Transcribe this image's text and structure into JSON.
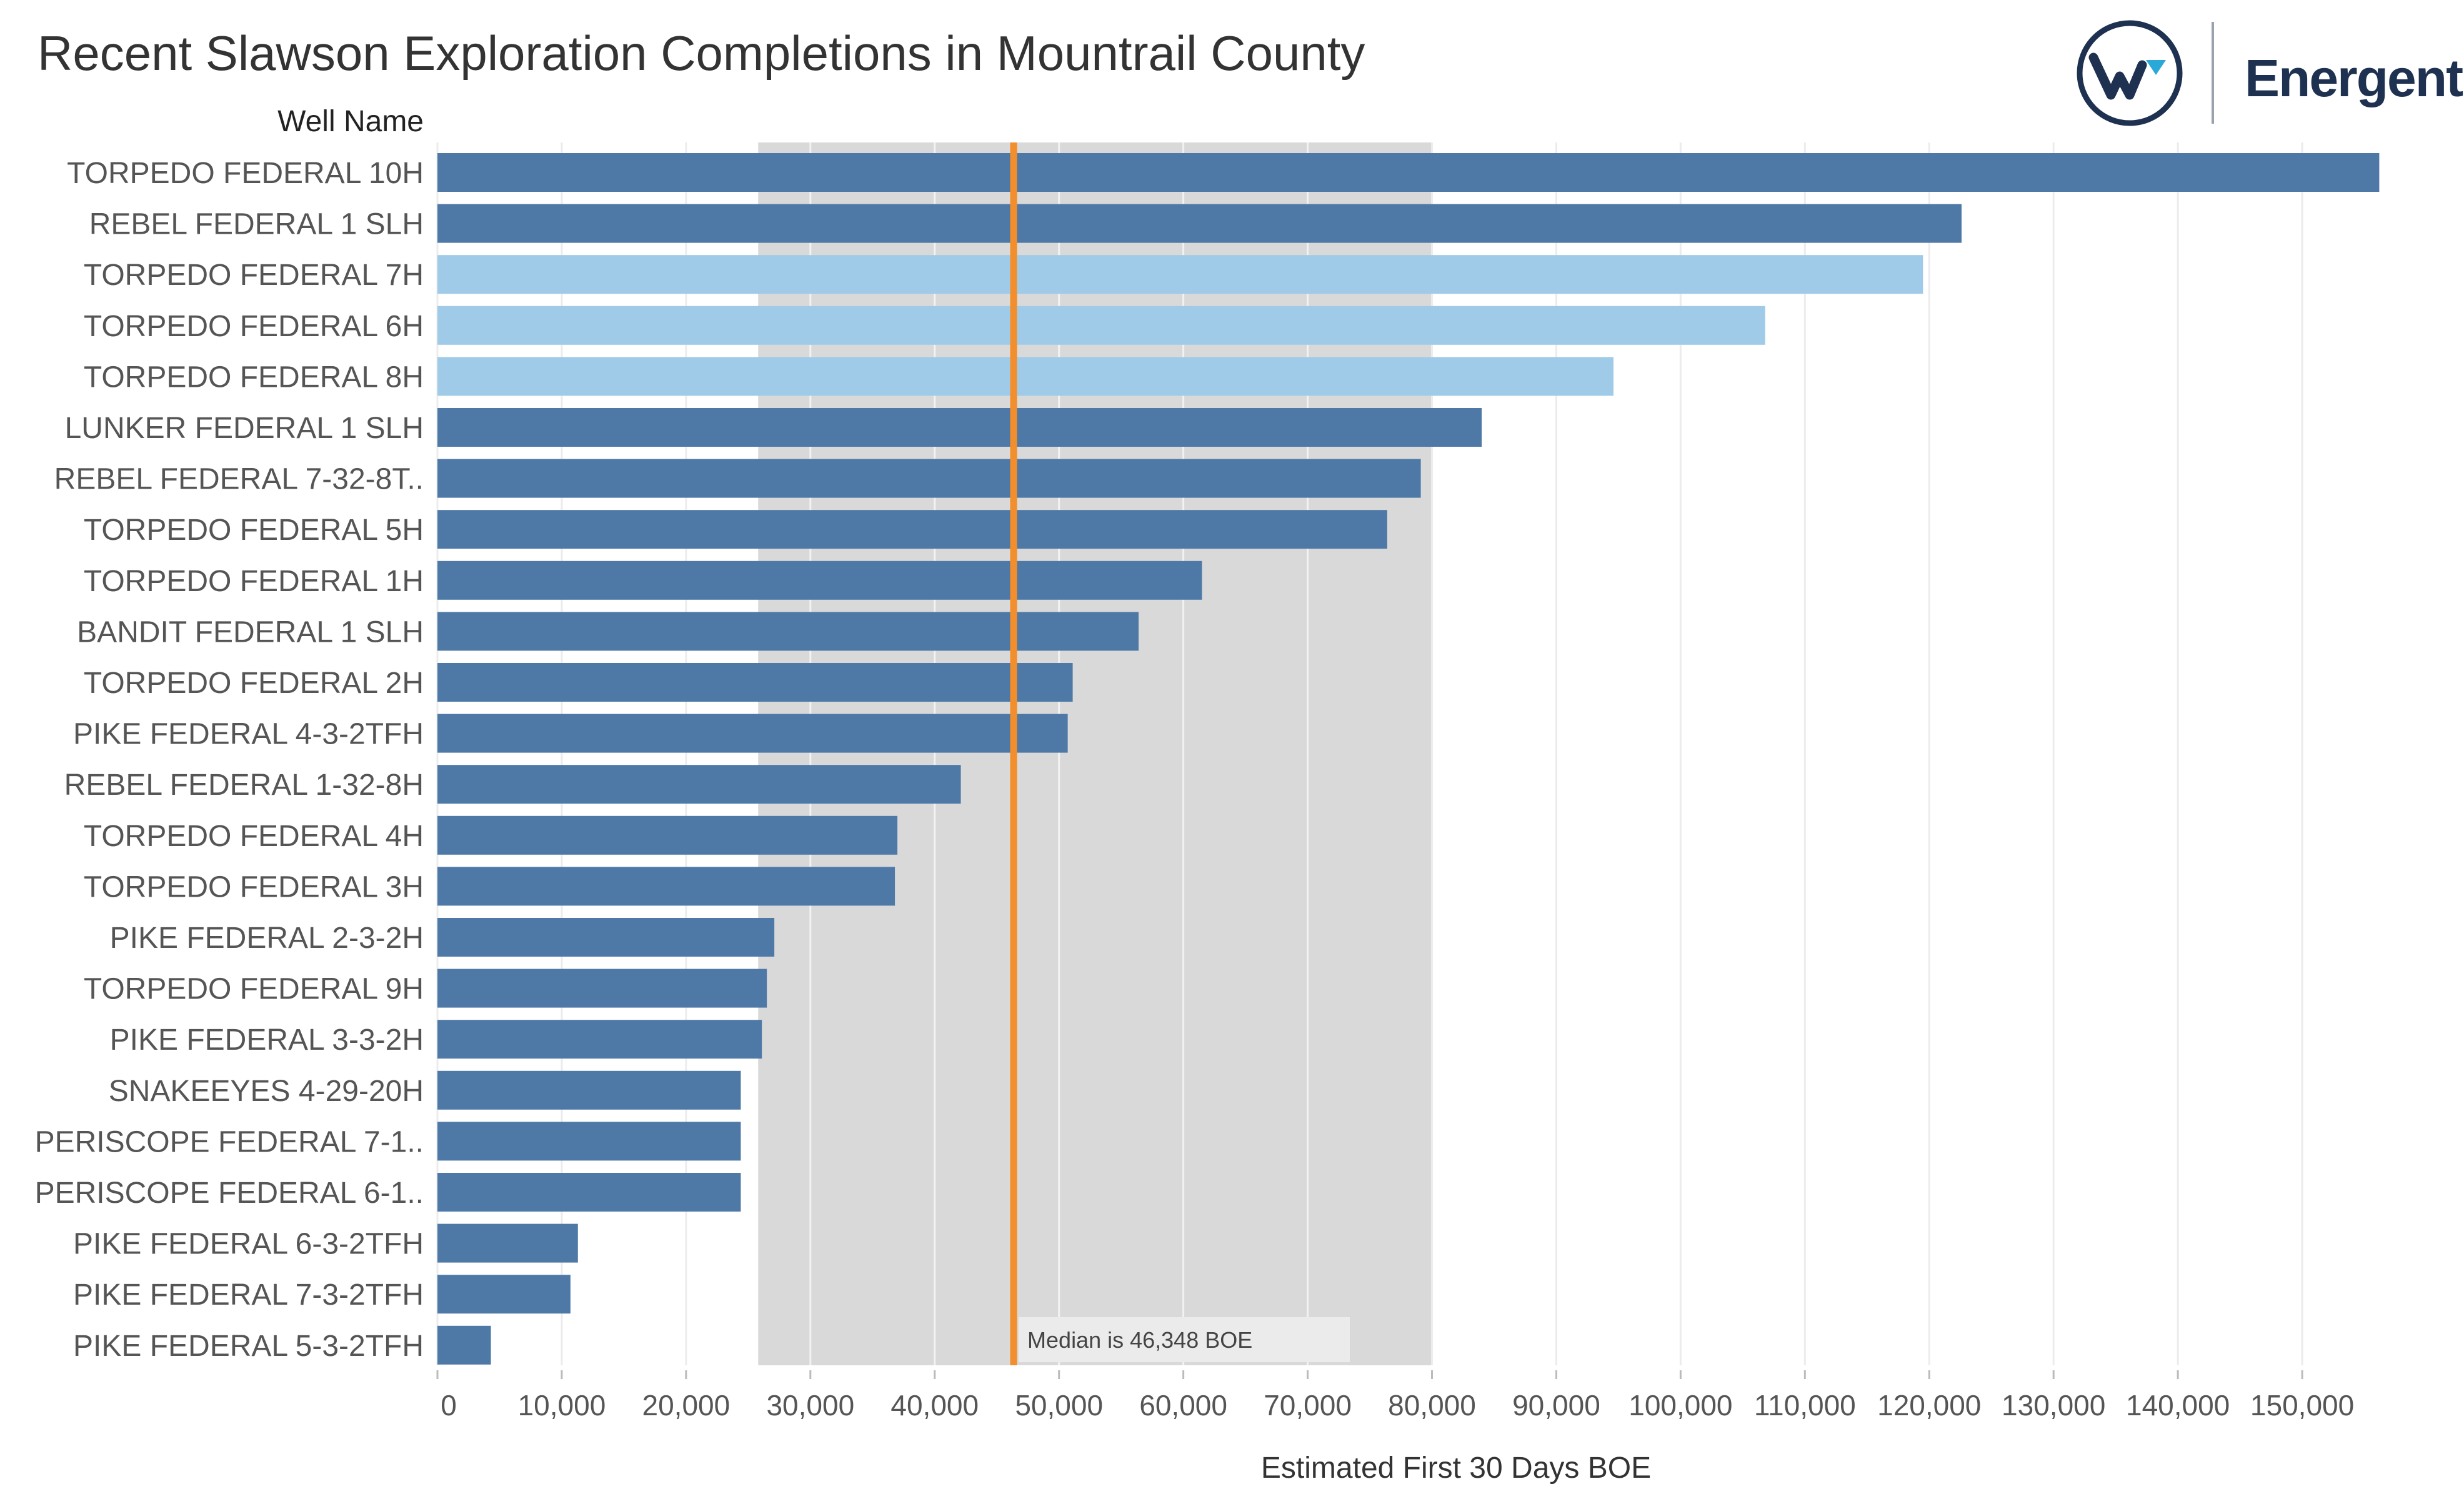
{
  "chart_data": {
    "type": "bar",
    "orientation": "horizontal",
    "title": "Recent Slawson Exploration Completions in Mountrail County",
    "category_axis_label": "Well Name",
    "xlabel": "Estimated First 30 Days BOE",
    "xlim": [
      0,
      160000
    ],
    "x_ticks": [
      0,
      10000,
      20000,
      30000,
      40000,
      50000,
      60000,
      70000,
      80000,
      90000,
      100000,
      110000,
      120000,
      130000,
      140000,
      150000
    ],
    "x_tick_labels": [
      "0",
      "10,000",
      "20,000",
      "30,000",
      "40,000",
      "50,000",
      "60,000",
      "70,000",
      "80,000",
      "90,000",
      "100,000",
      "110,000",
      "120,000",
      "130,000",
      "140,000",
      "150,000"
    ],
    "grid": "vertical",
    "colors": {
      "default_bar": "#4e79a7",
      "highlight_bar": "#a0cbe8",
      "median_line": "#f28e2b",
      "band": "#d9d9d9"
    },
    "reference_band": {
      "from": 25800,
      "to": 80000
    },
    "median": {
      "value": 46348,
      "label": "Median is 46,348 BOE"
    },
    "categories": [
      "TORPEDO FEDERAL 10H",
      "REBEL FEDERAL 1 SLH",
      "TORPEDO FEDERAL 7H",
      "TORPEDO FEDERAL 6H",
      "TORPEDO FEDERAL 8H",
      "LUNKER FEDERAL 1 SLH",
      "REBEL FEDERAL 7-32-8T..",
      "TORPEDO FEDERAL 5H",
      "TORPEDO FEDERAL 1H",
      "BANDIT FEDERAL 1 SLH",
      "TORPEDO FEDERAL 2H",
      "PIKE FEDERAL 4-3-2TFH",
      "REBEL FEDERAL 1-32-8H",
      "TORPEDO FEDERAL 4H",
      "TORPEDO FEDERAL 3H",
      "PIKE FEDERAL 2-3-2H",
      "TORPEDO FEDERAL 9H",
      "PIKE FEDERAL 3-3-2H",
      "SNAKEEYES 4-29-20H",
      "PERISCOPE FEDERAL 7-1..",
      "PERISCOPE FEDERAL 6-1..",
      "PIKE FEDERAL 6-3-2TFH",
      "PIKE FEDERAL 7-3-2TFH",
      "PIKE FEDERAL 5-3-2TFH"
    ],
    "values": [
      156200,
      122600,
      119500,
      106800,
      94600,
      84000,
      79100,
      76400,
      61500,
      56400,
      51100,
      50700,
      42100,
      37000,
      36800,
      27100,
      26500,
      26100,
      24400,
      24400,
      24400,
      11300,
      10700,
      4300
    ],
    "highlighted": [
      false,
      false,
      true,
      true,
      true,
      false,
      false,
      false,
      false,
      false,
      false,
      false,
      false,
      false,
      false,
      false,
      false,
      false,
      false,
      false,
      false,
      false,
      false,
      false
    ]
  },
  "brand": {
    "logo_name": "energent-w-logo",
    "name": "Energent"
  }
}
